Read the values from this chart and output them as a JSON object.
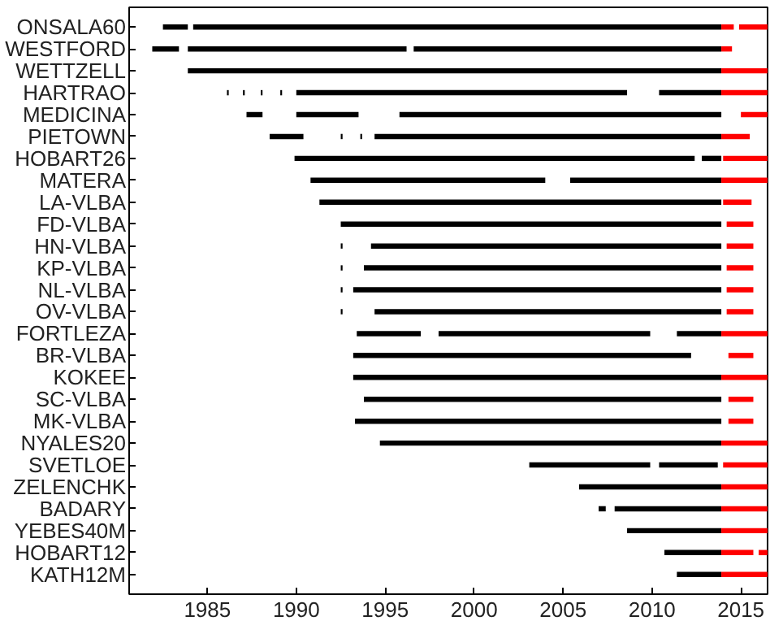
{
  "chart_data": {
    "type": "bar",
    "orientation": "horizontal",
    "grid": false,
    "xlim": [
      1980.6,
      2016.5
    ],
    "xticks": [
      1985,
      1990,
      1995,
      2000,
      2005,
      2010,
      2015
    ],
    "categories": [
      "ONSALA60",
      "WESTFORD",
      "WETTZELL",
      "HARTRAO",
      "MEDICINA",
      "PIETOWN",
      "HOBART26",
      "MATERA",
      "LA-VLBA",
      "FD-VLBA",
      "HN-VLBA",
      "KP-VLBA",
      "NL-VLBA",
      "OV-VLBA",
      "FORTLEZA",
      "BR-VLBA",
      "KOKEE",
      "SC-VLBA",
      "MK-VLBA",
      "NYALES20",
      "SVETLOE",
      "ZELENCHK",
      "BADARY",
      "YEBES40M",
      "HOBART12",
      "KATH12M"
    ],
    "series": [
      {
        "color": "#000000",
        "base": [
          1982.5,
          1981.9,
          1983.9,
          1986.1,
          1987.2,
          1988.5,
          1989.9,
          1990.8,
          1991.3,
          1992.5,
          1992.5,
          1992.5,
          1992.5,
          1992.5,
          1993.4,
          1993.2,
          1993.2,
          1993.8,
          1993.3,
          1994.7,
          2003.1,
          2005.9,
          2007.0,
          2008.6,
          2010.7,
          2011.4
        ],
        "values": [
          1.4,
          1.5,
          30.0,
          0.1,
          0.9,
          1.9,
          22.5,
          13.2,
          22.6,
          21.4,
          0.1,
          0.1,
          0.1,
          0.1,
          3.6,
          19.0,
          20.7,
          20.1,
          20.6,
          19.2,
          6.8,
          8.0,
          0.4,
          5.3,
          3.2,
          2.5
        ]
      },
      {
        "color": "#000000",
        "base": [
          1984.2,
          1983.9,
          null,
          1987.0,
          1990.0,
          1992.5,
          2012.8,
          2005.4,
          null,
          null,
          1994.2,
          1993.8,
          1993.2,
          1994.4,
          1998.0,
          null,
          null,
          null,
          null,
          null,
          2010.4,
          null,
          2007.9,
          null,
          null,
          null
        ],
        "values": [
          29.7,
          12.3,
          null,
          0.1,
          3.5,
          0.1,
          1.1,
          8.5,
          null,
          null,
          19.7,
          20.1,
          20.7,
          19.5,
          11.9,
          null,
          null,
          null,
          null,
          null,
          3.3,
          null,
          6.0,
          null,
          null,
          null
        ]
      },
      {
        "color": "#000000",
        "base": [
          null,
          1996.6,
          null,
          1988.0,
          1995.8,
          1993.6,
          null,
          null,
          null,
          null,
          null,
          null,
          null,
          null,
          2011.4,
          null,
          null,
          null,
          null,
          null,
          null,
          null,
          null,
          null,
          null,
          null
        ],
        "values": [
          null,
          17.3,
          null,
          0.1,
          18.1,
          0.1,
          null,
          null,
          null,
          null,
          null,
          null,
          null,
          null,
          2.5,
          null,
          null,
          null,
          null,
          null,
          null,
          null,
          null,
          null,
          null,
          null
        ]
      },
      {
        "color": "#000000",
        "base": [
          null,
          null,
          null,
          1989.1,
          null,
          1994.4,
          null,
          null,
          null,
          null,
          null,
          null,
          null,
          null,
          null,
          null,
          null,
          null,
          null,
          null,
          null,
          null,
          null,
          null,
          null,
          null
        ],
        "values": [
          null,
          null,
          null,
          0.1,
          null,
          19.5,
          null,
          null,
          null,
          null,
          null,
          null,
          null,
          null,
          null,
          null,
          null,
          null,
          null,
          null,
          null,
          null,
          null,
          null,
          null,
          null
        ]
      },
      {
        "color": "#000000",
        "base": [
          null,
          null,
          null,
          1990.0,
          null,
          null,
          null,
          null,
          null,
          null,
          null,
          null,
          null,
          null,
          null,
          null,
          null,
          null,
          null,
          null,
          null,
          null,
          null,
          null,
          null,
          null
        ],
        "values": [
          null,
          null,
          null,
          18.6,
          null,
          null,
          null,
          null,
          null,
          null,
          null,
          null,
          null,
          null,
          null,
          null,
          null,
          null,
          null,
          null,
          null,
          null,
          null,
          null,
          null,
          null
        ]
      },
      {
        "color": "#000000",
        "base": [
          null,
          null,
          null,
          2010.4,
          null,
          null,
          null,
          null,
          null,
          null,
          null,
          null,
          null,
          null,
          null,
          null,
          null,
          null,
          null,
          null,
          null,
          null,
          null,
          null,
          null,
          null
        ],
        "values": [
          null,
          null,
          null,
          3.5,
          null,
          null,
          null,
          null,
          null,
          null,
          null,
          null,
          null,
          null,
          null,
          null,
          null,
          null,
          null,
          null,
          null,
          null,
          null,
          null,
          null,
          null
        ]
      },
      {
        "color": "#ff0000",
        "base": [
          2013.9,
          2013.9,
          2013.9,
          2013.9,
          2015.0,
          2013.9,
          2014.0,
          2013.9,
          2014.0,
          2014.2,
          2014.2,
          2014.2,
          2014.2,
          2014.2,
          2013.9,
          2014.3,
          2013.9,
          2014.3,
          2014.3,
          2013.9,
          2014.0,
          2013.9,
          2013.9,
          2013.9,
          2013.9,
          2013.9
        ],
        "values": [
          0.7,
          0.6,
          2.6,
          2.6,
          1.5,
          1.6,
          2.5,
          2.6,
          1.6,
          1.5,
          1.5,
          1.5,
          1.5,
          1.5,
          2.6,
          1.4,
          2.6,
          1.4,
          1.4,
          2.6,
          2.5,
          2.6,
          2.6,
          2.6,
          1.8,
          2.6
        ]
      },
      {
        "color": "#ff0000",
        "base": [
          2014.9,
          null,
          null,
          null,
          null,
          null,
          null,
          null,
          null,
          null,
          null,
          null,
          null,
          null,
          null,
          null,
          null,
          null,
          null,
          null,
          null,
          null,
          null,
          null,
          2016.0,
          null
        ],
        "values": [
          1.6,
          null,
          null,
          null,
          null,
          null,
          null,
          null,
          null,
          null,
          null,
          null,
          null,
          null,
          null,
          null,
          null,
          null,
          null,
          null,
          null,
          null,
          null,
          null,
          0.5,
          null
        ]
      }
    ]
  }
}
